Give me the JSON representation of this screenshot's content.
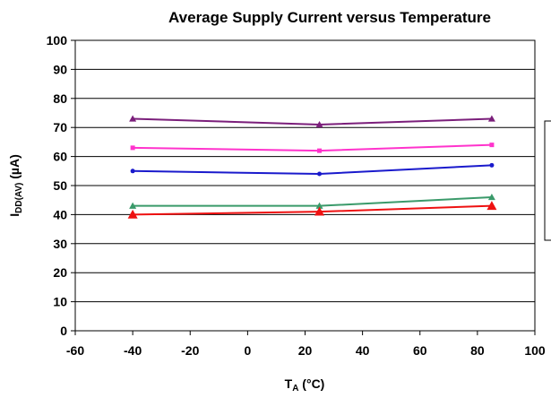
{
  "chart_data": {
    "type": "line",
    "title": "Average Supply Current versus Temperature",
    "xlabel_main": "T",
    "xlabel_sub": "A",
    "xlabel_tail": " (°C)",
    "ylabel_main": "I",
    "ylabel_sub": "DD(AV)",
    "ylabel_tail": " (µA)",
    "xlim": [
      -60,
      100
    ],
    "ylim": [
      0,
      100
    ],
    "xticks": [
      "-60",
      "-40",
      "-20",
      "0",
      "20",
      "40",
      "60",
      "80",
      "100"
    ],
    "yticks": [
      "0",
      "10",
      "20",
      "30",
      "40",
      "50",
      "60",
      "70",
      "80",
      "90",
      "100"
    ],
    "grid": "horizontal",
    "legend": "right (entries cut off at image edge)",
    "x": [
      -40,
      25,
      85
    ],
    "series": [
      {
        "color": "#7b1f7b",
        "marker": "triangle",
        "values": [
          73,
          71,
          73
        ]
      },
      {
        "color": "#ff33cc",
        "marker": "square",
        "values": [
          63,
          62,
          64
        ]
      },
      {
        "color": "#1a1acc",
        "marker": "circle",
        "values": [
          55,
          54,
          57
        ]
      },
      {
        "color": "#3a9a6a",
        "marker": "triangle",
        "values": [
          43,
          43,
          46
        ]
      },
      {
        "color": "#ee1111",
        "marker": "triangle",
        "values": [
          40,
          41,
          43
        ]
      }
    ]
  }
}
